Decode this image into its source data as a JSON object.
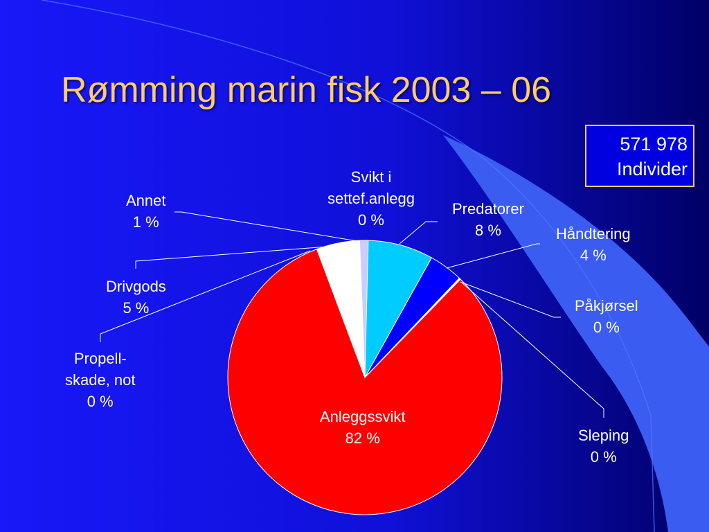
{
  "slide": {
    "title": "Rømming marin fisk 2003 – 06",
    "total": {
      "line1": "571 978",
      "line2": "Individer"
    }
  },
  "colors": {
    "background_left": "#1818f8",
    "background_right": "#000066",
    "swoosh": "#3a5cf0",
    "title": "#ffcc66"
  },
  "chart_data": {
    "type": "pie",
    "start": "top, clockwise",
    "slices": [
      {
        "name": "Svikt i settef.anlegg",
        "label_lines": [
          "Svikt i",
          "settef.anlegg",
          "0 %"
        ],
        "value": 0,
        "color": "#ffffff"
      },
      {
        "name": "Predatorer",
        "label_lines": [
          "Predatorer",
          "8 %"
        ],
        "value": 8,
        "color": "#00ccff"
      },
      {
        "name": "Håndtering",
        "label_lines": [
          "Håndtering",
          "4 %"
        ],
        "value": 4,
        "color": "#0000ff"
      },
      {
        "name": "Påkjørsel",
        "label_lines": [
          "Påkjørsel",
          "0 %"
        ],
        "value": 0,
        "color": "#ffffff"
      },
      {
        "name": "Sleping",
        "label_lines": [
          "Sleping",
          "0 %"
        ],
        "value": 0,
        "color": "#ffffff"
      },
      {
        "name": "Anleggssvikt",
        "label_lines": [
          "Anleggssvikt",
          "82 %"
        ],
        "value": 82,
        "color": "#ff0000"
      },
      {
        "name": "Propell-skade, not",
        "label_lines": [
          "Propell-",
          "skade, not",
          "0 %"
        ],
        "value": 0,
        "color": "#ffffff"
      },
      {
        "name": "Drivgods",
        "label_lines": [
          "Drivgods",
          "5 %"
        ],
        "value": 5,
        "color": "#ffffff"
      },
      {
        "name": "Annet",
        "label_lines": [
          "Annet",
          "1 %"
        ],
        "value": 1,
        "color": "#ccccff"
      }
    ]
  }
}
